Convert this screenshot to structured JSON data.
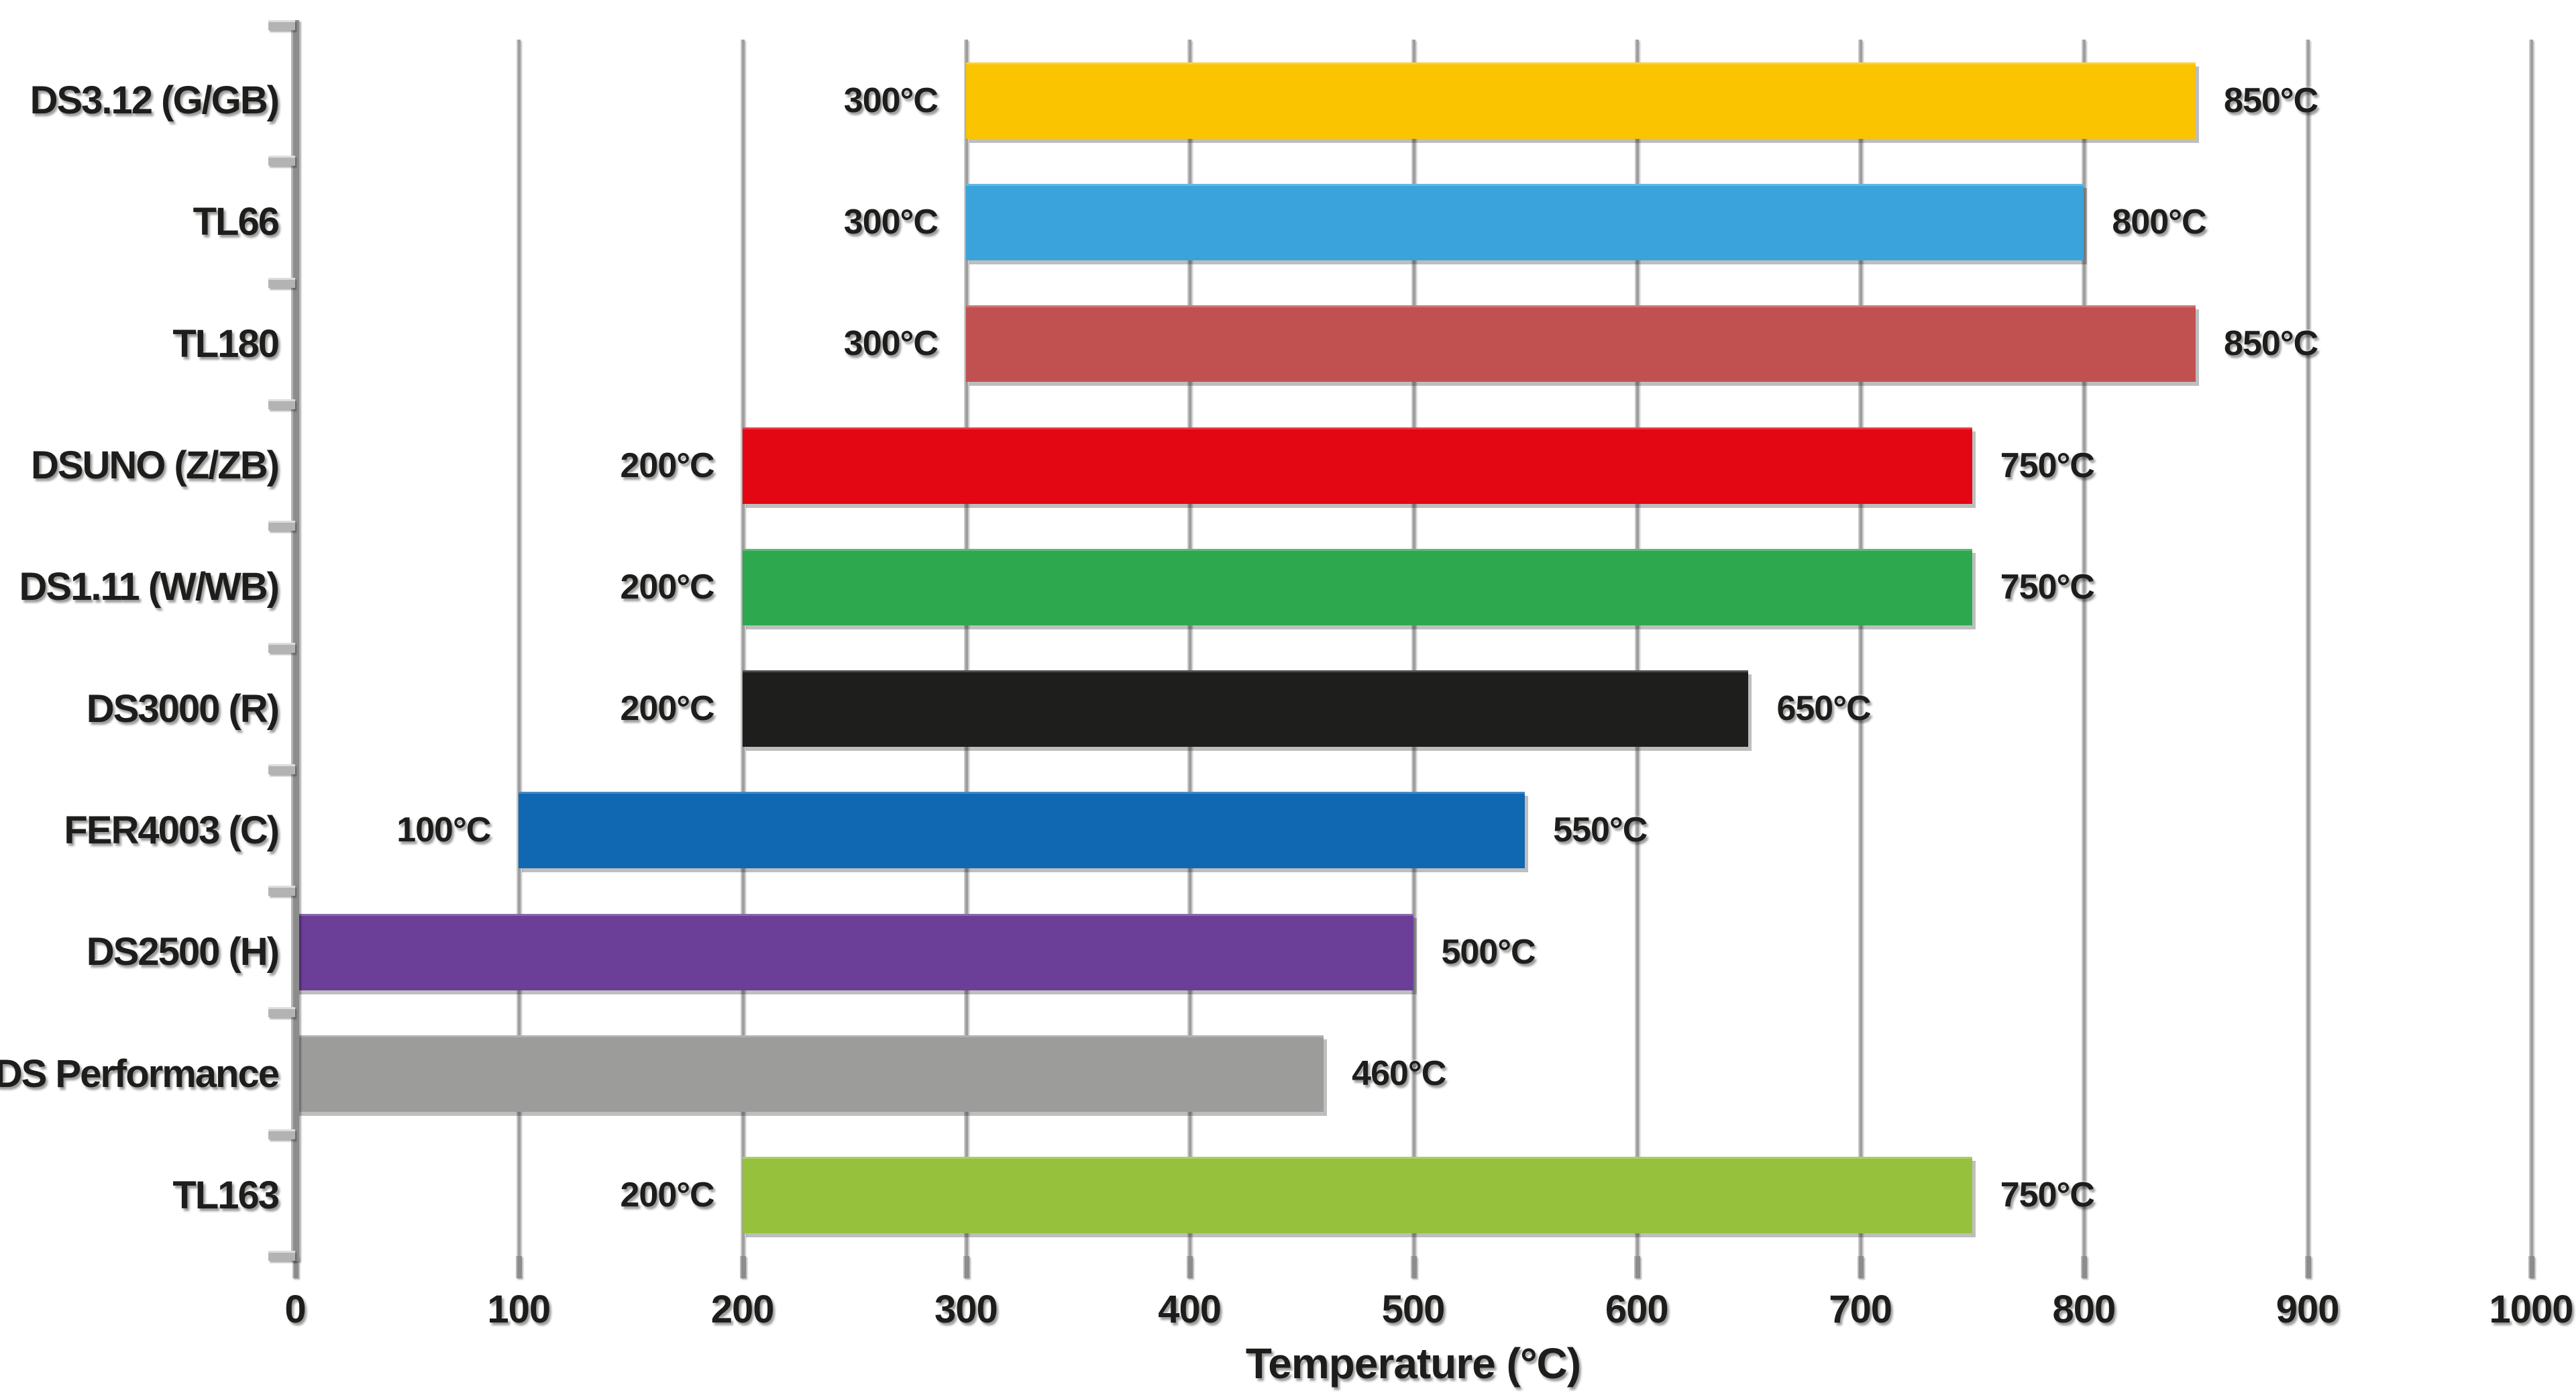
{
  "chart_data": {
    "type": "bar",
    "orientation": "horizontal",
    "title": "",
    "xlabel": "Temperature (°C)",
    "ylabel": "",
    "xlim": [
      0,
      1000
    ],
    "grid": true,
    "x_ticks": [
      "0",
      "100",
      "200",
      "300",
      "400",
      "500",
      "600",
      "700",
      "800",
      "900",
      "1000"
    ],
    "rows": [
      {
        "label": "DS3.12 (G/GB)",
        "min": 300,
        "max": 850,
        "start_label": "300°C",
        "end_label": "850°C",
        "color": "#FAC401"
      },
      {
        "label": "TL66",
        "min": 300,
        "max": 800,
        "start_label": "300°C",
        "end_label": "800°C",
        "color": "#3BA3DB"
      },
      {
        "label": "TL180",
        "min": 300,
        "max": 850,
        "start_label": "300°C",
        "end_label": "850°C",
        "color": "#C15150"
      },
      {
        "label": "DSUNO (Z/ZB)",
        "min": 200,
        "max": 750,
        "start_label": "200°C",
        "end_label": "750°C",
        "color": "#E30613"
      },
      {
        "label": "DS1.11 (W/WB)",
        "min": 200,
        "max": 750,
        "start_label": "200°C",
        "end_label": "750°C",
        "color": "#2EA84F"
      },
      {
        "label": "DS3000 (R)",
        "min": 200,
        "max": 650,
        "start_label": "200°C",
        "end_label": "650°C",
        "color": "#1E1E1C"
      },
      {
        "label": "FER4003 (C)",
        "min": 100,
        "max": 550,
        "start_label": "100°C",
        "end_label": "550°C",
        "color": "#1068B2"
      },
      {
        "label": "DS2500 (H)",
        "min": 0,
        "max": 500,
        "start_label": "",
        "end_label": "500°C",
        "color": "#6B3E97"
      },
      {
        "label": "DS Performance",
        "min": 0,
        "max": 460,
        "start_label": "",
        "end_label": "460°C",
        "color": "#9C9C9B"
      },
      {
        "label": "TL163",
        "min": 200,
        "max": 750,
        "start_label": "200°C",
        "end_label": "750°C",
        "color": "#95C13D"
      }
    ]
  },
  "style": {
    "background": "#FFFFFF",
    "grid_color": "#9E9E9E",
    "axis_color": "#8C8C8C",
    "nub_color": "#B3B3B3",
    "text_color": "#1D1D1B"
  }
}
